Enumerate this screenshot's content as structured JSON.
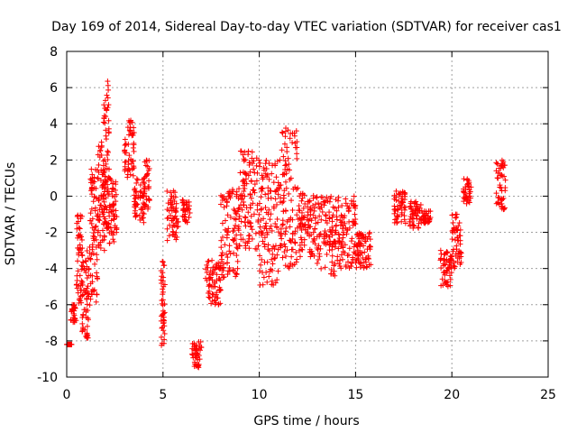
{
  "chart_data": {
    "type": "scatter",
    "title": "Day 169 of 2014, Sidereal Day-to-day VTEC variation (SDTVAR) for receiver cas1",
    "xlabel": "GPS time / hours",
    "ylabel": "SDTVAR / TECUs",
    "xlim": [
      0,
      25
    ],
    "ylim": [
      -10,
      8
    ],
    "xticks": [
      0,
      5,
      10,
      15,
      20,
      25
    ],
    "yticks": [
      -10,
      -8,
      -6,
      -4,
      -2,
      0,
      2,
      4,
      6,
      8
    ],
    "xtick_labels": [
      "0",
      "5",
      "10",
      "15",
      "20",
      "25"
    ],
    "ytick_labels": [
      "-10",
      "-8",
      "-6",
      "-4",
      "-2",
      "0",
      "2",
      "4",
      "6",
      "8"
    ],
    "grid": true,
    "marker": "+",
    "color": "#ff0000",
    "series": [
      {
        "name": "cas1",
        "segments": [
          {
            "x": [
              0.0,
              0.3
            ],
            "y": [
              -8.2,
              -8.2
            ]
          },
          {
            "x": [
              0.2,
              0.5
            ],
            "y": [
              -7.0,
              -6.0
            ]
          },
          {
            "x": [
              0.5,
              0.8
            ],
            "y": [
              -6.0,
              -1.0
            ]
          },
          {
            "x": [
              0.8,
              1.2
            ],
            "y": [
              -8.0,
              -2.5
            ]
          },
          {
            "x": [
              1.2,
              1.6
            ],
            "y": [
              -6.0,
              1.5
            ]
          },
          {
            "x": [
              1.6,
              2.0
            ],
            "y": [
              -3.0,
              3.0
            ]
          },
          {
            "x": [
              1.9,
              2.2
            ],
            "y": [
              -2.0,
              6.6
            ]
          },
          {
            "x": [
              2.2,
              2.6
            ],
            "y": [
              -3.0,
              1.0
            ]
          },
          {
            "x": [
              3.0,
              3.5
            ],
            "y": [
              1.0,
              4.2
            ]
          },
          {
            "x": [
              3.5,
              4.0
            ],
            "y": [
              -1.5,
              1.0
            ]
          },
          {
            "x": [
              4.0,
              4.3
            ],
            "y": [
              -1.0,
              2.0
            ]
          },
          {
            "x": [
              4.9,
              5.1
            ],
            "y": [
              -8.5,
              -3.5
            ]
          },
          {
            "x": [
              5.2,
              5.8
            ],
            "y": [
              -2.5,
              0.3
            ]
          },
          {
            "x": [
              6.0,
              6.4
            ],
            "y": [
              -1.5,
              -0.2
            ]
          },
          {
            "x": [
              6.5,
              7.0
            ],
            "y": [
              -9.5,
              -8.0
            ]
          },
          {
            "x": [
              7.2,
              8.0
            ],
            "y": [
              -6.0,
              -3.5
            ]
          },
          {
            "x": [
              8.0,
              9.0
            ],
            "y": [
              -4.5,
              0.5
            ]
          },
          {
            "x": [
              9.0,
              10.0
            ],
            "y": [
              -3.0,
              2.5
            ]
          },
          {
            "x": [
              10.0,
              11.0
            ],
            "y": [
              -5.0,
              2.0
            ]
          },
          {
            "x": [
              11.0,
              12.0
            ],
            "y": [
              -4.0,
              3.8
            ]
          },
          {
            "x": [
              12.0,
              13.0
            ],
            "y": [
              -3.5,
              0.3
            ]
          },
          {
            "x": [
              13.0,
              14.0
            ],
            "y": [
              -4.5,
              0.0
            ]
          },
          {
            "x": [
              14.0,
              15.0
            ],
            "y": [
              -4.0,
              0.0
            ]
          },
          {
            "x": [
              15.0,
              15.8
            ],
            "y": [
              -4.0,
              -2.0
            ]
          },
          {
            "x": [
              17.0,
              17.6
            ],
            "y": [
              -1.5,
              0.3
            ]
          },
          {
            "x": [
              17.8,
              18.4
            ],
            "y": [
              -1.8,
              -0.3
            ]
          },
          {
            "x": [
              18.4,
              18.9
            ],
            "y": [
              -1.5,
              -0.8
            ]
          },
          {
            "x": [
              19.4,
              20.0
            ],
            "y": [
              -5.0,
              -3.0
            ]
          },
          {
            "x": [
              20.0,
              20.5
            ],
            "y": [
              -4.0,
              -1.0
            ]
          },
          {
            "x": [
              20.6,
              21.0
            ],
            "y": [
              -0.5,
              1.0
            ]
          },
          {
            "x": [
              22.3,
              22.8
            ],
            "y": [
              -0.8,
              2.0
            ]
          }
        ]
      }
    ]
  }
}
